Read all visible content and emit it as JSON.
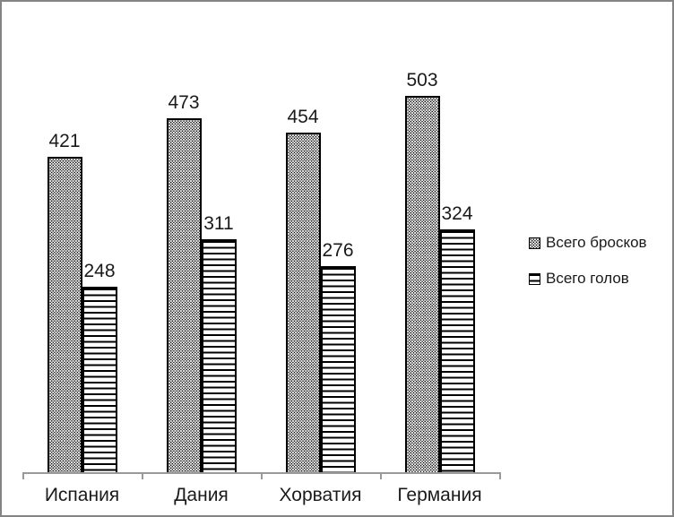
{
  "chart_data": {
    "type": "bar",
    "title": "",
    "xlabel": "",
    "ylabel": "",
    "categories": [
      "Испания",
      "Дания",
      "Хорватия",
      "Германия"
    ],
    "series": [
      {
        "name": "Всего бросков",
        "pattern": "dots",
        "values": [
          421,
          473,
          454,
          503
        ]
      },
      {
        "name": "Всего голов",
        "pattern": "hlines",
        "values": [
          248,
          311,
          276,
          324
        ]
      }
    ],
    "ylim": [
      0,
      600
    ],
    "grid": "off",
    "y_axis_visible": false,
    "legend_position": "right",
    "value_labels_visible": true
  },
  "colors": {
    "bar_fill": "#ffffff",
    "bar_pattern": "#000000",
    "bar_border": "#000000",
    "axis": "#9a9a9a",
    "text": "#1a1a1a",
    "frame_border": "#848484",
    "background": "#ffffff"
  }
}
